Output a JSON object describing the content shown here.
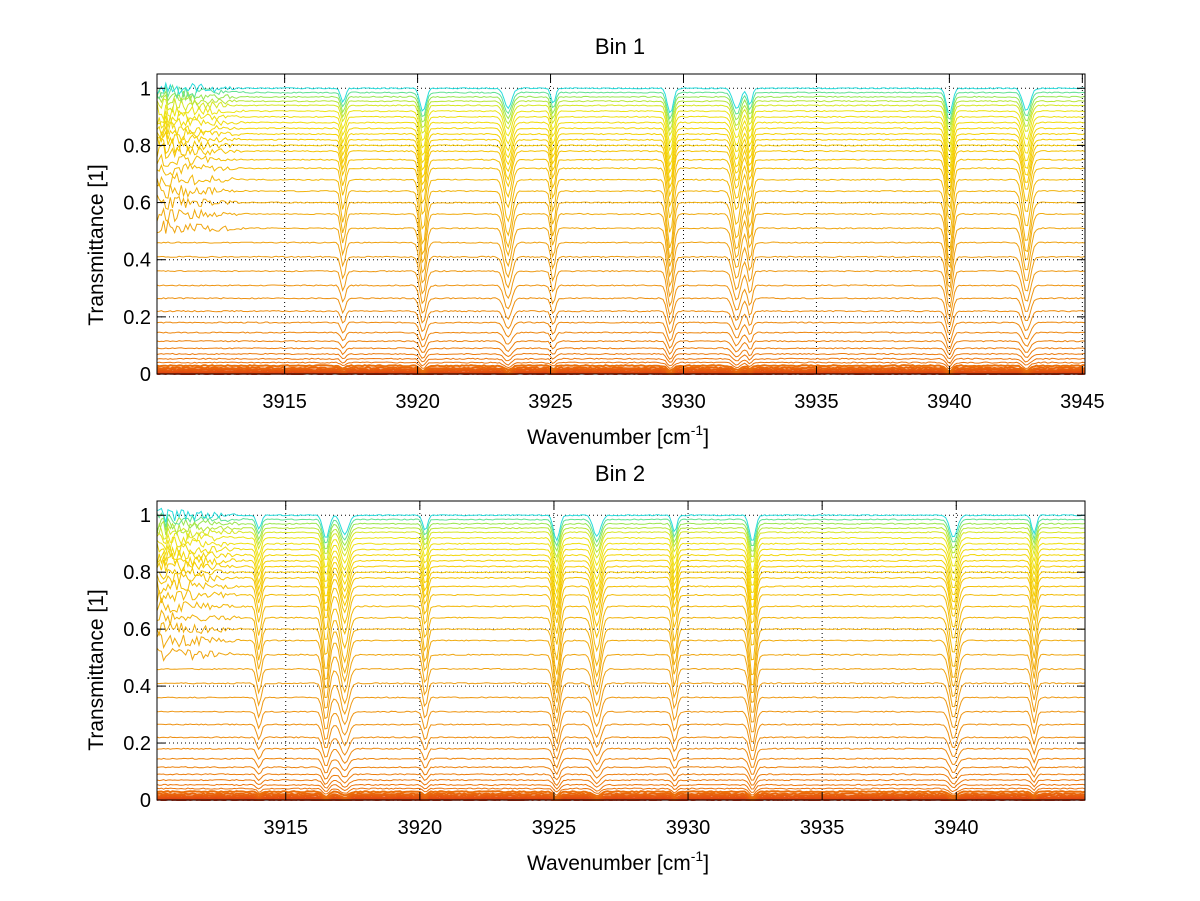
{
  "chart_data": [
    {
      "type": "line",
      "title": "Bin 1",
      "xlabel": "Wavenumber [cm",
      "xlabel_sup": "-1",
      "xlabel_tail": "]",
      "ylabel": "Transmittance [1]",
      "xlim": [
        3910.2,
        3945.1
      ],
      "ylim": [
        0,
        1.05
      ],
      "xticks": [
        3915,
        3920,
        3925,
        3930,
        3935,
        3940,
        3945
      ],
      "xtick_labels": [
        "3915",
        "3920",
        "3925",
        "3930",
        "3935",
        "3940",
        "3945"
      ],
      "yticks": [
        0,
        0.2,
        0.4,
        0.6,
        0.8,
        1
      ],
      "ytick_labels": [
        "0",
        "0.2",
        "0.4",
        "0.6",
        "0.8",
        "1"
      ],
      "grid": true,
      "series_count": 40,
      "series_baselines": [
        0.0,
        0.003,
        0.006,
        0.01,
        0.015,
        0.021,
        0.029,
        0.04,
        0.053,
        0.07,
        0.09,
        0.115,
        0.145,
        0.18,
        0.22,
        0.265,
        0.31,
        0.36,
        0.41,
        0.46,
        0.51,
        0.56,
        0.6,
        0.64,
        0.68,
        0.72,
        0.75,
        0.78,
        0.8,
        0.82,
        0.84,
        0.86,
        0.88,
        0.9,
        0.92,
        0.94,
        0.955,
        0.97,
        0.985,
        1.0
      ],
      "absorption_lines_x": [
        3917.2,
        3920.2,
        3923.4,
        3925.1,
        3929.5,
        3932.0,
        3932.5,
        3940.0,
        3942.9
      ]
    },
    {
      "type": "line",
      "title": "Bin 2",
      "xlabel": "Wavenumber [cm",
      "xlabel_sup": "-1",
      "xlabel_tail": "]",
      "ylabel": "Transmittance [1]",
      "xlim": [
        3910.2,
        3944.8
      ],
      "ylim": [
        0,
        1.05
      ],
      "xticks": [
        3915,
        3920,
        3925,
        3930,
        3935,
        3940
      ],
      "xtick_labels": [
        "3915",
        "3920",
        "3925",
        "3930",
        "3935",
        "3940"
      ],
      "yticks": [
        0,
        0.2,
        0.4,
        0.6,
        0.8,
        1
      ],
      "ytick_labels": [
        "0",
        "0.2",
        "0.4",
        "0.6",
        "0.8",
        "1"
      ],
      "grid": true,
      "series_count": 40,
      "series_baselines": [
        0.0,
        0.003,
        0.006,
        0.01,
        0.015,
        0.021,
        0.029,
        0.04,
        0.053,
        0.07,
        0.09,
        0.115,
        0.145,
        0.18,
        0.22,
        0.265,
        0.31,
        0.36,
        0.41,
        0.46,
        0.51,
        0.56,
        0.6,
        0.64,
        0.68,
        0.72,
        0.75,
        0.78,
        0.8,
        0.82,
        0.84,
        0.86,
        0.88,
        0.9,
        0.92,
        0.94,
        0.955,
        0.97,
        0.985,
        1.0
      ],
      "absorption_lines_x": [
        3914.0,
        3916.5,
        3917.2,
        3920.2,
        3925.1,
        3926.6,
        3929.5,
        3932.4,
        3939.9,
        3942.9
      ]
    }
  ]
}
